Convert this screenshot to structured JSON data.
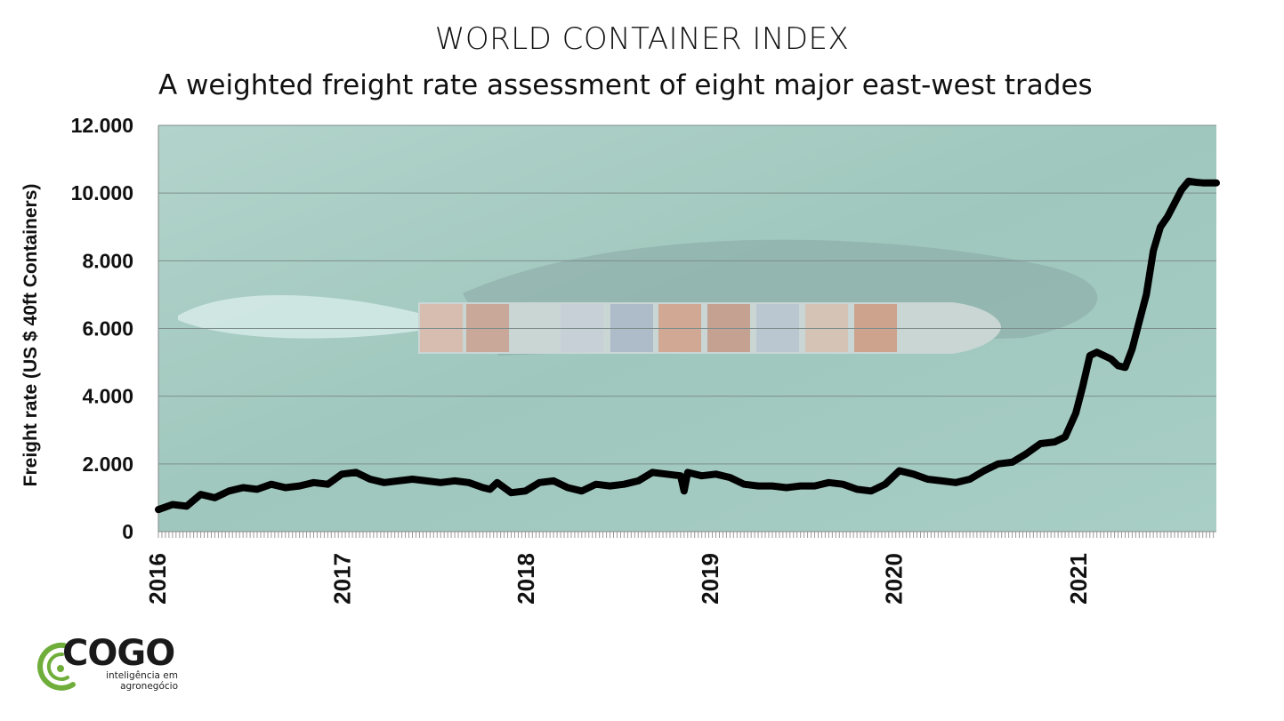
{
  "chart_data": {
    "type": "line",
    "title": "WORLD CONTAINER INDEX",
    "subtitle": "A weighted freight rate assessment of eight major east-west trades",
    "ylabel": "Freight rate (US $ 40ft Containers)",
    "xlabel": "",
    "ylim": [
      0,
      12000
    ],
    "xlim": [
      "2016-01-01",
      "2021-09-30"
    ],
    "yticks": [
      "0",
      "2.000",
      "4.000",
      "6.000",
      "8.000",
      "10.000",
      "12.000"
    ],
    "ytick_values": [
      0,
      2000,
      4000,
      6000,
      8000,
      10000,
      12000
    ],
    "xtick_labels": [
      "2016",
      "2017",
      "2018",
      "2019",
      "2020",
      "2021"
    ],
    "xtick_values": [
      "2016-01-01",
      "2017-01-01",
      "2018-01-01",
      "2019-01-01",
      "2020-01-01",
      "2021-01-01"
    ],
    "grid": true,
    "series_color": "#000000",
    "series": [
      {
        "x": [
          "2016-01-01",
          "2016-01-29",
          "2016-02-26",
          "2016-03-25",
          "2016-04-22",
          "2016-05-20",
          "2016-06-17",
          "2016-07-15",
          "2016-08-12",
          "2016-09-09",
          "2016-10-07",
          "2016-11-04",
          "2016-12-02",
          "2016-12-30",
          "2017-01-27",
          "2017-02-24",
          "2017-03-24",
          "2017-04-21",
          "2017-05-19",
          "2017-06-16",
          "2017-07-14",
          "2017-08-11",
          "2017-09-08",
          "2017-10-06",
          "2017-10-20",
          "2017-11-03",
          "2017-12-01",
          "2017-12-29",
          "2018-01-26",
          "2018-02-23",
          "2018-03-23",
          "2018-04-20",
          "2018-05-18",
          "2018-06-15",
          "2018-07-13",
          "2018-08-10",
          "2018-09-07",
          "2018-10-05",
          "2018-11-02",
          "2018-11-09",
          "2018-11-16",
          "2018-12-14",
          "2019-01-11",
          "2019-02-08",
          "2019-03-08",
          "2019-04-05",
          "2019-05-03",
          "2019-05-31",
          "2019-06-28",
          "2019-07-26",
          "2019-08-23",
          "2019-09-20",
          "2019-10-18",
          "2019-11-15",
          "2019-12-13",
          "2020-01-10",
          "2020-02-07",
          "2020-03-06",
          "2020-04-03",
          "2020-05-01",
          "2020-05-29",
          "2020-06-26",
          "2020-07-24",
          "2020-08-21",
          "2020-09-18",
          "2020-10-16",
          "2020-11-13",
          "2020-12-04",
          "2020-12-25",
          "2021-01-08",
          "2021-01-22",
          "2021-02-05",
          "2021-02-19",
          "2021-03-05",
          "2021-03-19",
          "2021-04-02",
          "2021-04-16",
          "2021-04-30",
          "2021-05-14",
          "2021-05-28",
          "2021-06-11",
          "2021-06-25",
          "2021-07-09",
          "2021-07-23",
          "2021-08-06",
          "2021-08-20",
          "2021-09-03",
          "2021-09-17",
          "2021-09-30"
        ],
        "y": [
          650,
          800,
          750,
          1100,
          1000,
          1200,
          1300,
          1250,
          1400,
          1300,
          1350,
          1450,
          1400,
          1700,
          1750,
          1550,
          1450,
          1500,
          1550,
          1500,
          1450,
          1500,
          1450,
          1300,
          1250,
          1450,
          1150,
          1200,
          1450,
          1500,
          1300,
          1200,
          1400,
          1350,
          1400,
          1500,
          1750,
          1700,
          1650,
          1200,
          1750,
          1650,
          1700,
          1600,
          1400,
          1350,
          1350,
          1300,
          1350,
          1350,
          1450,
          1400,
          1250,
          1200,
          1400,
          1800,
          1700,
          1550,
          1500,
          1450,
          1550,
          1800,
          2000,
          2050,
          2300,
          2600,
          2650,
          2800,
          3500,
          4300,
          5200,
          5300,
          5200,
          5100,
          4900,
          4850,
          5400,
          6200,
          7000,
          8300,
          9000,
          9300,
          9700,
          10100,
          10350,
          10320,
          10300,
          10300,
          10300
        ]
      }
    ]
  },
  "logo": {
    "wordmark": "COGO",
    "tagline_line1": "inteligência em",
    "tagline_line2": "agronegócio"
  },
  "colors": {
    "sea": "#a9cfc6",
    "grid": "#7a8a88",
    "line": "#000000",
    "logo_green": "#6fae3a"
  }
}
